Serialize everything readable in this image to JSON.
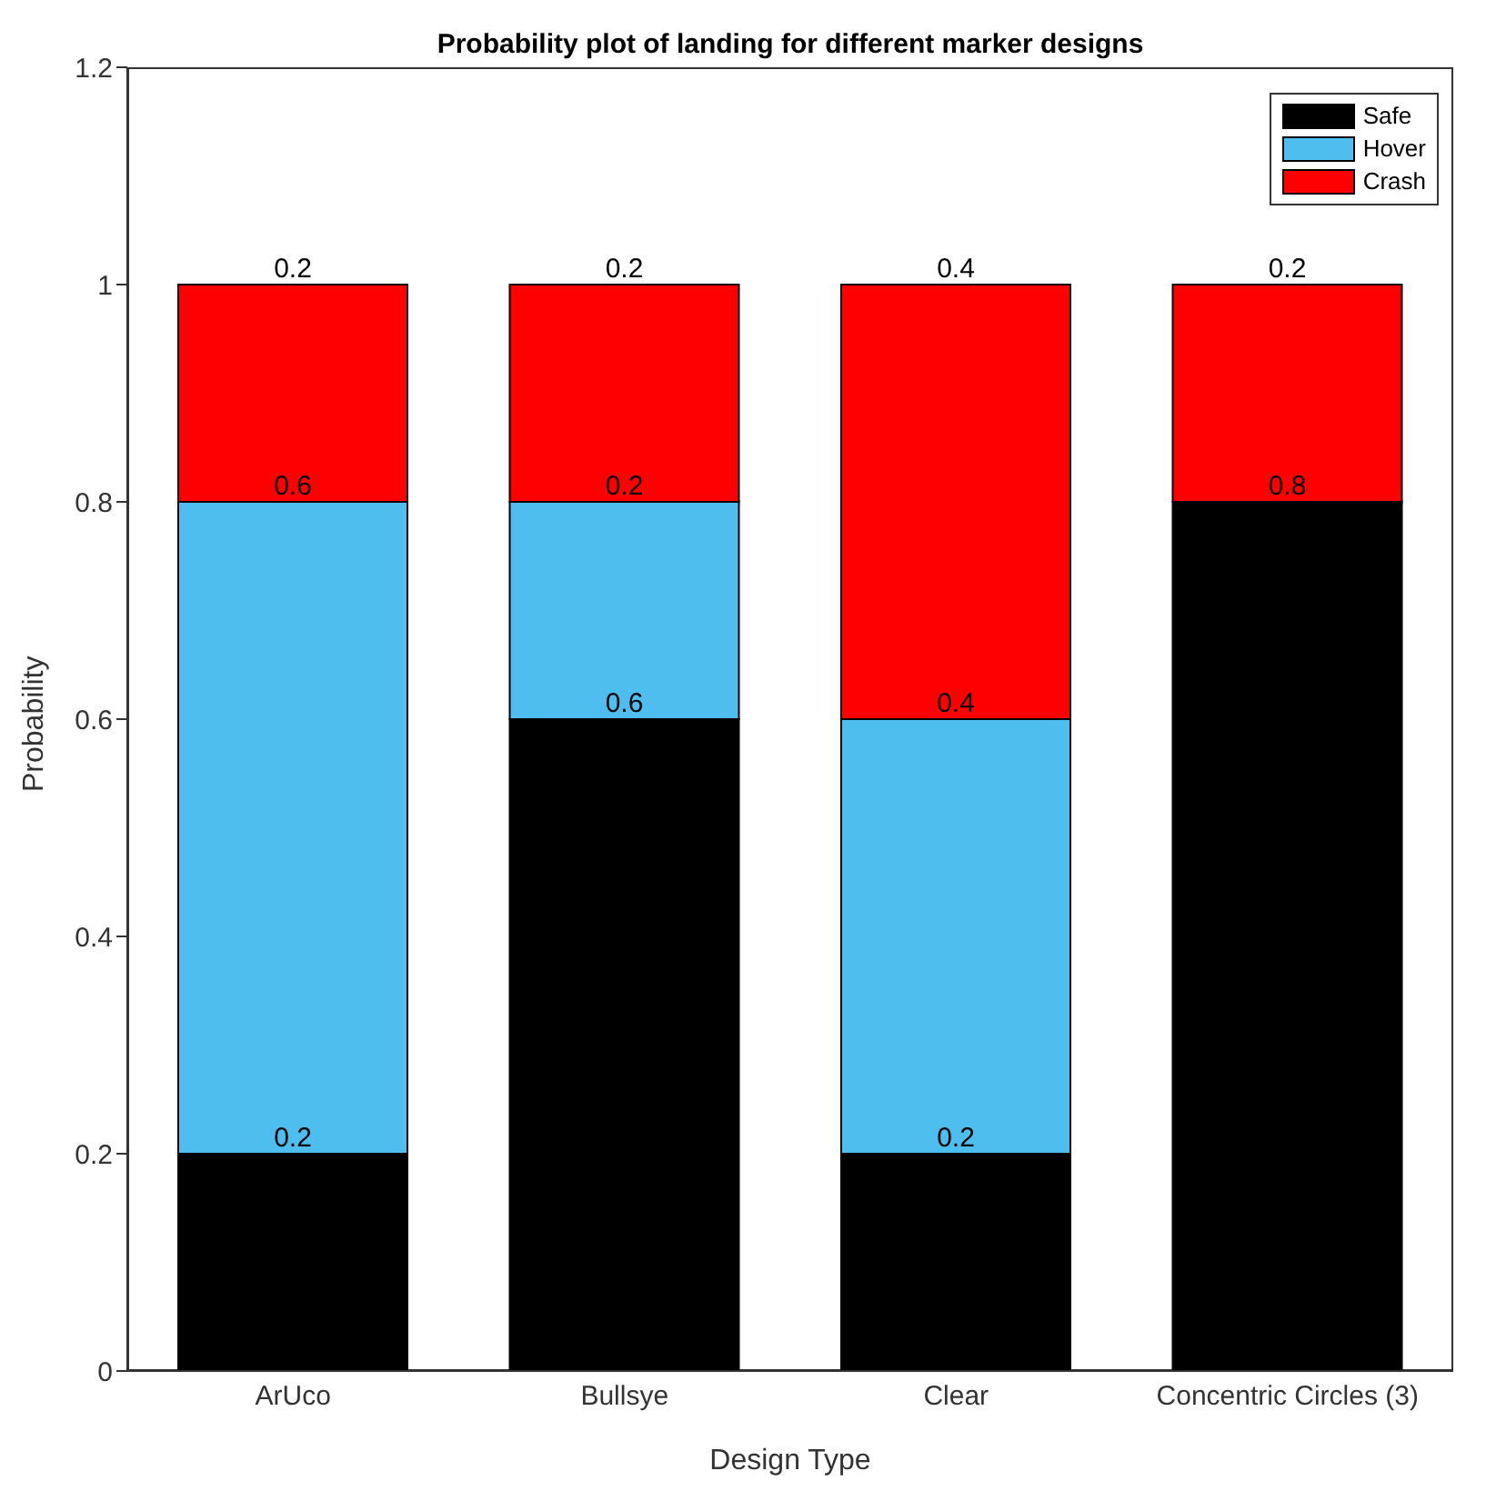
{
  "chart_data": {
    "type": "bar",
    "title": "Probability plot of landing for different marker designs",
    "xlabel": "Design Type",
    "ylabel": "Probability",
    "categories": [
      "ArUco",
      "Bullsye",
      "Clear",
      "Concentric Circles (3)"
    ],
    "stacked": true,
    "series": [
      {
        "name": "Safe",
        "color": "#000000",
        "values": [
          0.2,
          0.6,
          0.2,
          0.8
        ],
        "value_labels": [
          "0.2",
          "0.6",
          "0.2",
          "0.8"
        ]
      },
      {
        "name": "Hover",
        "color": "#4dbeee",
        "values": [
          0.6,
          0.2,
          0.4,
          0
        ],
        "value_labels": [
          "0.6",
          "0.2",
          "0.4",
          null
        ]
      },
      {
        "name": "Crash",
        "color": "#ff0000",
        "values": [
          0.2,
          0.2,
          0.4,
          0.2
        ],
        "value_labels": [
          "0.2",
          "0.2",
          "0.4",
          "0.2"
        ]
      }
    ],
    "ylim": [
      0,
      1.2
    ],
    "yticks": [
      0,
      0.2,
      0.4,
      0.6,
      0.8,
      1,
      1.2
    ],
    "legend": "top right",
    "grid": false
  }
}
